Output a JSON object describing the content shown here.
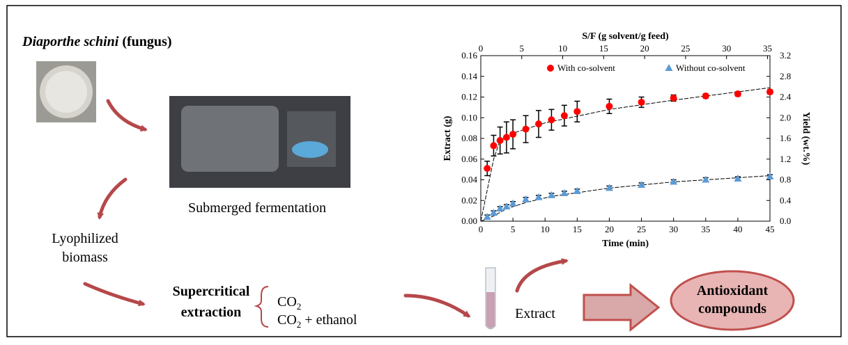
{
  "header": {
    "organism": "Diaporthe schini",
    "organism_note": "(fungus)"
  },
  "steps": {
    "fermentation": "Submerged fermentation",
    "biomass": [
      "Lyophilized",
      "biomass"
    ],
    "extraction": [
      "Supercritical",
      "extraction"
    ],
    "solvents": [
      {
        "base": "CO",
        "sub": "2"
      },
      {
        "base": "CO",
        "sub": "2",
        "rest": " + ethanol"
      }
    ],
    "extract": "Extract",
    "result": [
      "Antioxidant",
      "compounds"
    ]
  },
  "chart_data": {
    "type": "scatter",
    "xlabel": "Time (min)",
    "ylabel": "Extract (g)",
    "y2label": "Yield (wt.%)",
    "x2label": "S/F (g solvent/g feed)",
    "xlim": [
      0,
      45
    ],
    "xticks": [
      0,
      5,
      10,
      15,
      20,
      25,
      30,
      35,
      40,
      45
    ],
    "x2lim": [
      0,
      35.3
    ],
    "x2ticks": [
      0,
      5,
      10,
      15,
      20,
      25,
      30,
      35
    ],
    "ylim": [
      0,
      0.16
    ],
    "yticks": [
      {
        "value": 0,
        "label": "0.00"
      },
      0.02,
      0.04,
      0.06,
      0.08,
      {
        "value": 0.1,
        "label": "0.10"
      },
      0.12,
      0.14,
      0.16
    ],
    "y2lim": [
      0,
      3.2
    ],
    "y2ticks": [
      {
        "value": 0,
        "label": "0.0"
      },
      0.4,
      0.8,
      1.2,
      1.6,
      {
        "value": 2,
        "label": "2.0"
      },
      2.4,
      2.8,
      3.2
    ],
    "series": [
      {
        "name": "With co-solvent",
        "color": "#ff0000",
        "marker": "circle",
        "x": [
          1,
          2,
          3,
          4,
          5,
          7,
          9,
          11,
          13,
          15,
          20,
          25,
          30,
          35,
          40,
          45
        ],
        "values": [
          0.051,
          0.073,
          0.078,
          0.081,
          0.084,
          0.089,
          0.094,
          0.098,
          0.102,
          0.106,
          0.111,
          0.115,
          0.119,
          0.121,
          0.123,
          0.125
        ],
        "errors": [
          0.007,
          0.01,
          0.013,
          0.015,
          0.014,
          0.013,
          0.013,
          0.01,
          0.01,
          0.01,
          0.007,
          0.005,
          0.003,
          0.002,
          0.002,
          0.002
        ]
      },
      {
        "name": "Without co-solvent",
        "color": "#5b9bd5",
        "marker": "triangle",
        "x": [
          1,
          2,
          3,
          4,
          5,
          7,
          9,
          11,
          13,
          15,
          20,
          25,
          30,
          35,
          40,
          45
        ],
        "values": [
          0.004,
          0.008,
          0.012,
          0.014,
          0.017,
          0.021,
          0.023,
          0.025,
          0.027,
          0.029,
          0.032,
          0.035,
          0.038,
          0.04,
          0.041,
          0.043
        ],
        "errors": [
          0.002,
          0.002,
          0.002,
          0.002,
          0.002,
          0.002,
          0.002,
          0.002,
          0.002,
          0.002,
          0.002,
          0.002,
          0.002,
          0.002,
          0.002,
          0.002
        ]
      }
    ],
    "fit_curves": [
      {
        "x": [
          0,
          1,
          2,
          3,
          5,
          10,
          20,
          30,
          45
        ],
        "values": [
          0,
          0.03,
          0.06,
          0.078,
          0.085,
          0.095,
          0.108,
          0.117,
          0.129
        ]
      },
      {
        "x": [
          0,
          2,
          4,
          7,
          11,
          20,
          30,
          45
        ],
        "values": [
          0,
          0.005,
          0.012,
          0.018,
          0.024,
          0.032,
          0.038,
          0.044
        ]
      }
    ]
  }
}
